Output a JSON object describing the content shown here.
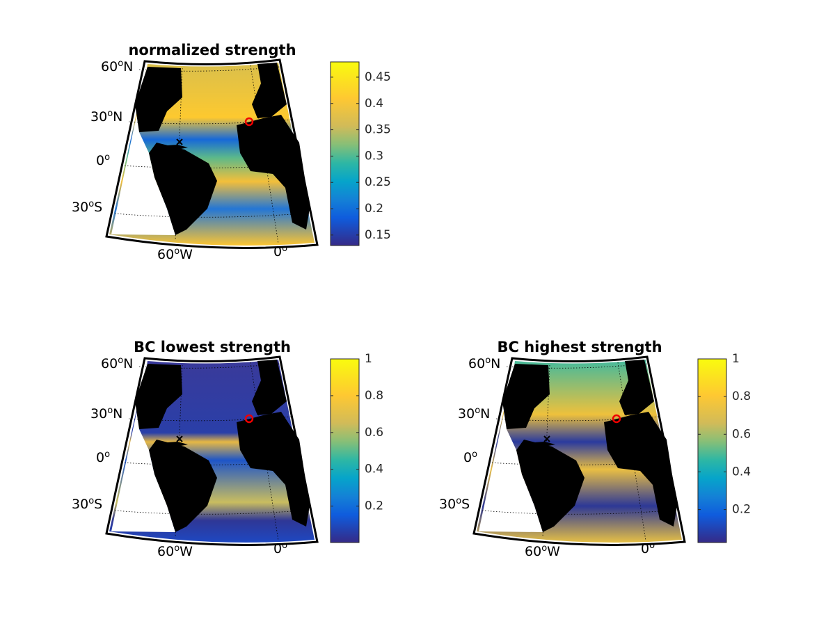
{
  "panels": [
    {
      "title": "normalized strength",
      "lat_labels": [
        [
          "60",
          "o",
          "N"
        ],
        [
          "30",
          "o",
          "N"
        ],
        [
          "0",
          "o"
        ],
        [
          "30",
          "o",
          "S"
        ]
      ],
      "lon_labels": [
        [
          "60",
          "o",
          "W"
        ],
        [
          "0",
          "o"
        ]
      ],
      "colorbar": {
        "lim": [
          0.13,
          0.479
        ],
        "ticks": [
          0.15,
          0.2,
          0.25,
          0.3,
          0.35,
          0.4,
          0.45
        ]
      }
    },
    {
      "title": "BC lowest strength",
      "lat_labels": [
        [
          "60",
          "o",
          "N"
        ],
        [
          "30",
          "o",
          "N"
        ],
        [
          "0",
          "o"
        ],
        [
          "30",
          "o",
          "S"
        ]
      ],
      "lon_labels": [
        [
          "60",
          "o",
          "W"
        ],
        [
          "0",
          "o"
        ]
      ],
      "colorbar": {
        "lim": [
          0.002,
          1
        ],
        "ticks": [
          0.2,
          0.4,
          0.6,
          0.8,
          1
        ]
      }
    },
    {
      "title": "BC highest strength",
      "lat_labels": [
        [
          "60",
          "o",
          "N"
        ],
        [
          "30",
          "o",
          "N"
        ],
        [
          "0",
          "o"
        ],
        [
          "30",
          "o",
          "S"
        ]
      ],
      "lon_labels": [
        [
          "60",
          "o",
          "W"
        ],
        [
          "0",
          "o"
        ]
      ],
      "colorbar": {
        "lim": [
          0.025,
          1
        ],
        "ticks": [
          0.2,
          0.4,
          0.6,
          0.8,
          1
        ]
      }
    }
  ]
}
